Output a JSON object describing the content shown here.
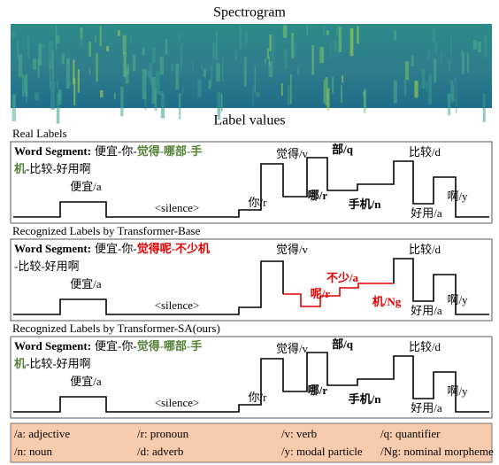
{
  "titles": {
    "spectrogram": "Spectrogram",
    "label_values": "Label values"
  },
  "panels": [
    {
      "heading": "Real Labels",
      "segment": [
        [
          {
            "text": "Word Segment:",
            "style": "bold"
          },
          {
            "text": "便宜-你-"
          },
          {
            "text": "觉得-哪部-手",
            "style": "green"
          }
        ],
        [
          {
            "text": "机",
            "style": "green"
          },
          {
            "text": "-比较-好用啊"
          }
        ]
      ],
      "labels": [
        {
          "text": "便宜/a"
        },
        {
          "text": "<silence>"
        },
        {
          "text": "你/r"
        },
        {
          "text": "觉得/v"
        },
        {
          "text": "部/q",
          "style": "bold"
        },
        {
          "text": "哪/r",
          "style": "bold"
        },
        {
          "text": "手机/n",
          "style": "bold"
        },
        {
          "text": "比较/d"
        },
        {
          "text": "好用/a"
        },
        {
          "text": "啊/y"
        }
      ]
    },
    {
      "heading": "Recognized  Labels by Transformer-Base",
      "segment": [
        [
          {
            "text": "Word Segment:",
            "style": "bold"
          },
          {
            "text": "便宜-你-"
          },
          {
            "text": "觉得呢-不少机",
            "style": "red"
          }
        ],
        [
          {
            "text": "-比较-好用啊"
          }
        ]
      ],
      "labels": [
        {
          "text": "便宜/a"
        },
        {
          "text": "<silence>"
        },
        {
          "text": "觉得/v"
        },
        {
          "text": "不少/a",
          "style": "red"
        },
        {
          "text": "呢/r",
          "style": "red"
        },
        {
          "text": "机/Ng",
          "style": "red"
        },
        {
          "text": "比较/d"
        },
        {
          "text": "好用/a"
        },
        {
          "text": "啊/y"
        }
      ]
    },
    {
      "heading": "Recognized  Labels by Transformer-SA(ours)",
      "segment": [
        [
          {
            "text": "Word Segment:",
            "style": "bold"
          },
          {
            "text": "便宜-你-"
          },
          {
            "text": "觉得-哪部-手",
            "style": "green"
          }
        ],
        [
          {
            "text": "机",
            "style": "green"
          },
          {
            "text": "-比较-好用啊"
          }
        ]
      ],
      "labels": [
        {
          "text": "便宜/a"
        },
        {
          "text": "<silence>"
        },
        {
          "text": "你/r"
        },
        {
          "text": "觉得/v"
        },
        {
          "text": "部/q",
          "style": "bold"
        },
        {
          "text": "哪/r",
          "style": "bold"
        },
        {
          "text": "手机/n",
          "style": "bold"
        },
        {
          "text": "比较/d"
        },
        {
          "text": "好用/a"
        },
        {
          "text": "啊/y"
        }
      ]
    }
  ],
  "legend": [
    [
      "/a: adjective",
      "/r: pronoun",
      "/v: verb",
      "/q: quantifier"
    ],
    [
      "/n: noun",
      "/d: adverb",
      "/y: modal particle",
      "/Ng: nominal morpheme"
    ]
  ]
}
